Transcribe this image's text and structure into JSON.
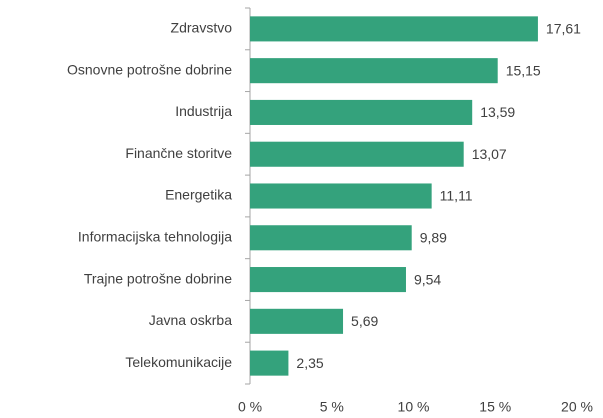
{
  "chart_data": {
    "type": "bar",
    "orientation": "horizontal",
    "categories": [
      "Zdravstvo",
      "Osnovne potrošne dobrine",
      "Industrija",
      "Finančne storitve",
      "Energetika",
      "Informacijska tehnologija",
      "Trajne potrošne dobrine",
      "Javna oskrba",
      "Telekomunikacije"
    ],
    "values": [
      17.61,
      15.15,
      13.59,
      13.07,
      11.11,
      9.89,
      9.54,
      5.69,
      2.35
    ],
    "value_labels": [
      "17,61",
      "15,15",
      "13,59",
      "13,07",
      "11,11",
      "9,89",
      "9,54",
      "5,69",
      "2,35"
    ],
    "color": "#34a27c",
    "xlim": [
      0,
      20
    ],
    "xticks": [
      {
        "value": 0,
        "label": "0 %"
      },
      {
        "value": 5,
        "label": "5 %"
      },
      {
        "value": 10,
        "label": "10 %"
      },
      {
        "value": 15,
        "label": "15 %"
      },
      {
        "value": 20,
        "label": "20 %"
      }
    ],
    "grid": false
  }
}
